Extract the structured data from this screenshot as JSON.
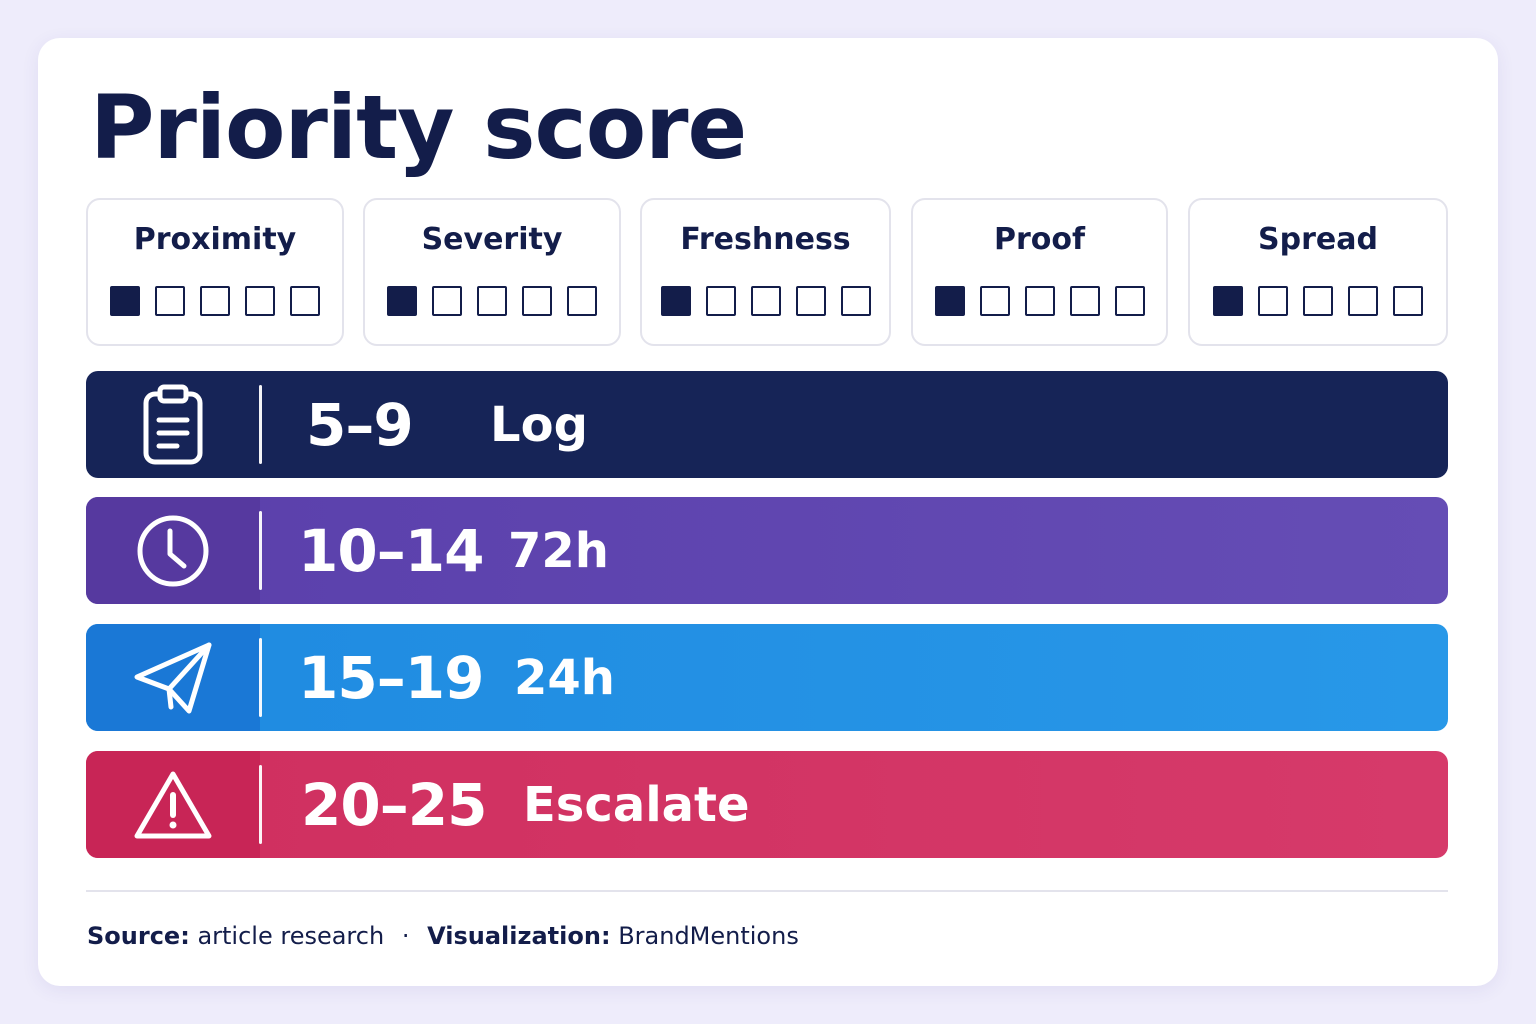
{
  "title": "Priority score",
  "factors": [
    {
      "label": "Proximity",
      "filled": 1,
      "total": 5
    },
    {
      "label": "Severity",
      "filled": 1,
      "total": 5
    },
    {
      "label": "Freshness",
      "filled": 1,
      "total": 5
    },
    {
      "label": "Proof",
      "filled": 1,
      "total": 5
    },
    {
      "label": "Spread",
      "filled": 1,
      "total": 5
    }
  ],
  "bands": [
    {
      "range": "5–9",
      "action": "Log",
      "icon": "clipboard-icon",
      "color": "#162457"
    },
    {
      "range": "10–14",
      "action": "72h",
      "icon": "clock-icon",
      "color": "#5f45b0"
    },
    {
      "range": "15–19",
      "action": "24h",
      "icon": "paper-plane-icon",
      "color": "#2290e4"
    },
    {
      "range": "20–25",
      "action": "Escalate",
      "icon": "warning-icon",
      "color": "#d23465"
    }
  ],
  "footer": {
    "source_label": "Source:",
    "source_value": "article research",
    "separator": "·",
    "viz_label": "Visualization:",
    "viz_value": "BrandMentions"
  }
}
